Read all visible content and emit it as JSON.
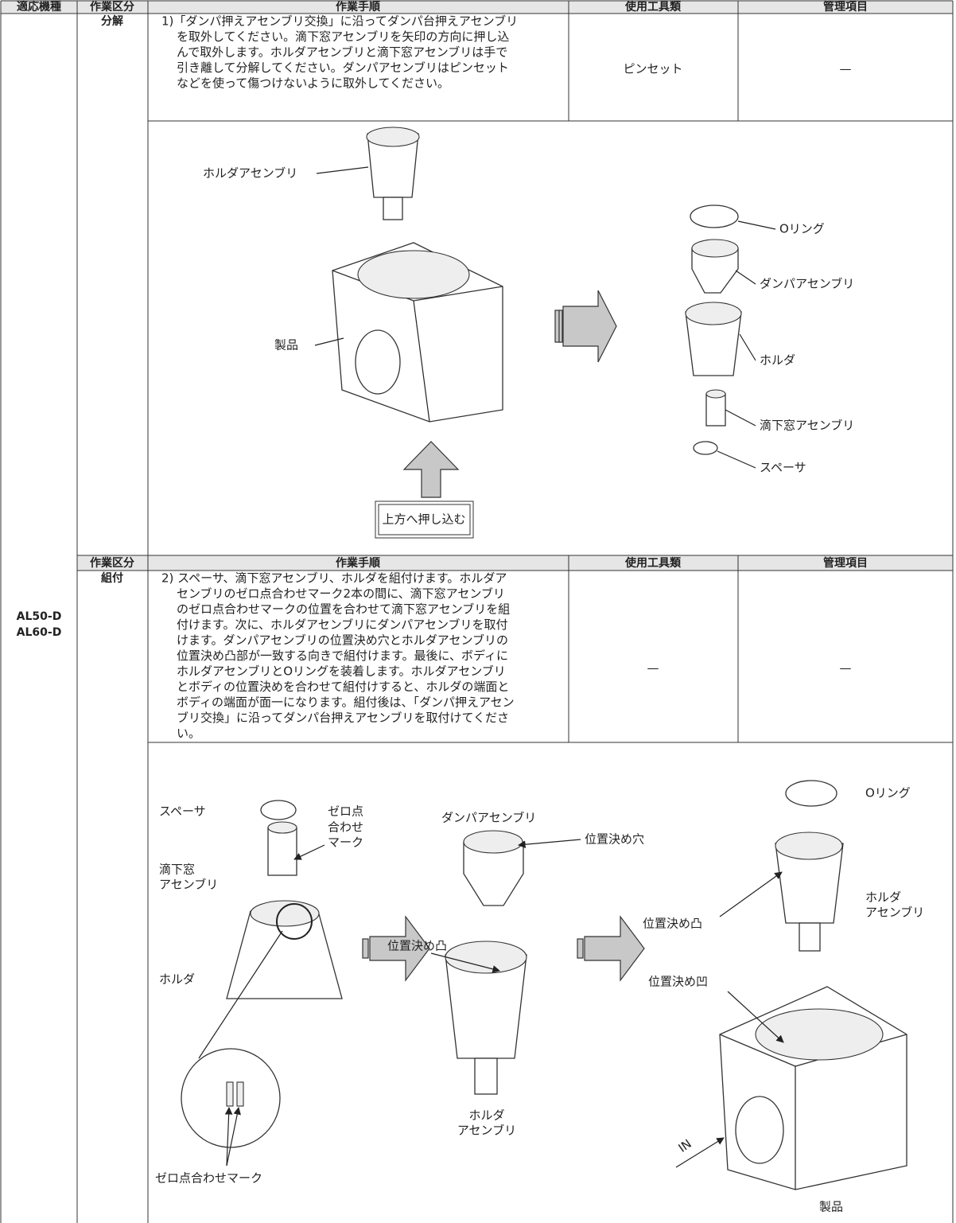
{
  "header": {
    "columns": [
      "適応機種",
      "作業区分",
      "作業手順",
      "使用工具類",
      "管理項目"
    ]
  },
  "model": [
    "AL50-D",
    "AL60-D"
  ],
  "disassembly": {
    "category": "分解",
    "steps": [
      "1)「ダンパ押えアセンブリ交換」に沿ってダンパ台押えアセンブリ",
      "を取外してください。滴下窓アセンブリを矢印の方向に押し込",
      "んで取外します。ホルダアセンブリと滴下窓アセンブリは手で",
      "引き離して分解してください。ダンパアセンブリはピンセット",
      "などを使って傷つけないように取外してください。"
    ],
    "tools": "ピンセット",
    "control": "—",
    "labels": [
      "ホルダアセンブリ",
      "Oリング",
      "ダンパアセンブリ",
      "製品",
      "ホルダ",
      "滴下窓アセンブリ",
      "スペーサ"
    ],
    "push_label": "上方へ押し込む"
  },
  "subheader": [
    "作業区分",
    "作業手順",
    "使用工具類",
    "管理項目"
  ],
  "assembly": {
    "category": "組付",
    "steps": [
      "2) スペーサ、滴下窓アセンブリ、ホルダを組付けます。ホルダア",
      "センブリのゼロ点合わせマーク2本の間に、滴下窓アセンブリ",
      "のゼロ点合わせマークの位置を合わせて滴下窓アセンブリを組",
      "付けます。次に、ホルダアセンブリにダンパアセンブリを取付",
      "けます。ダンパアセンブリの位置決め穴とホルダアセンブリの",
      "位置決め凸部が一致する向きで組付けます。最後に、ボディに",
      "ホルダアセンブリとOリングを装着します。ホルダアセンブリ",
      "とボディの位置決めを合わせて組付けすると、ホルダの端面と",
      "ボディの端面が面一になります。組付後は、「ダンパ押えアセン",
      "ブリ交換」に沿ってダンパ台押えアセンブリを取付けてくださ",
      "い。"
    ],
    "tools": "—",
    "control": "—",
    "labels": [
      "Oリング",
      "スペーサ",
      "ゼロ点",
      "合わせ",
      "マーク",
      "ダンパアセンブリ",
      "位置決め穴",
      "滴下窓",
      "アセンブリ",
      "ホルダ",
      "アセンブリ",
      "位置決め凸",
      "位置決め凸",
      "ホルダ",
      "位置決め凹",
      "ホルダ",
      "アセンブリ",
      "IN",
      "ゼロ点合わせマーク",
      "製品"
    ]
  }
}
